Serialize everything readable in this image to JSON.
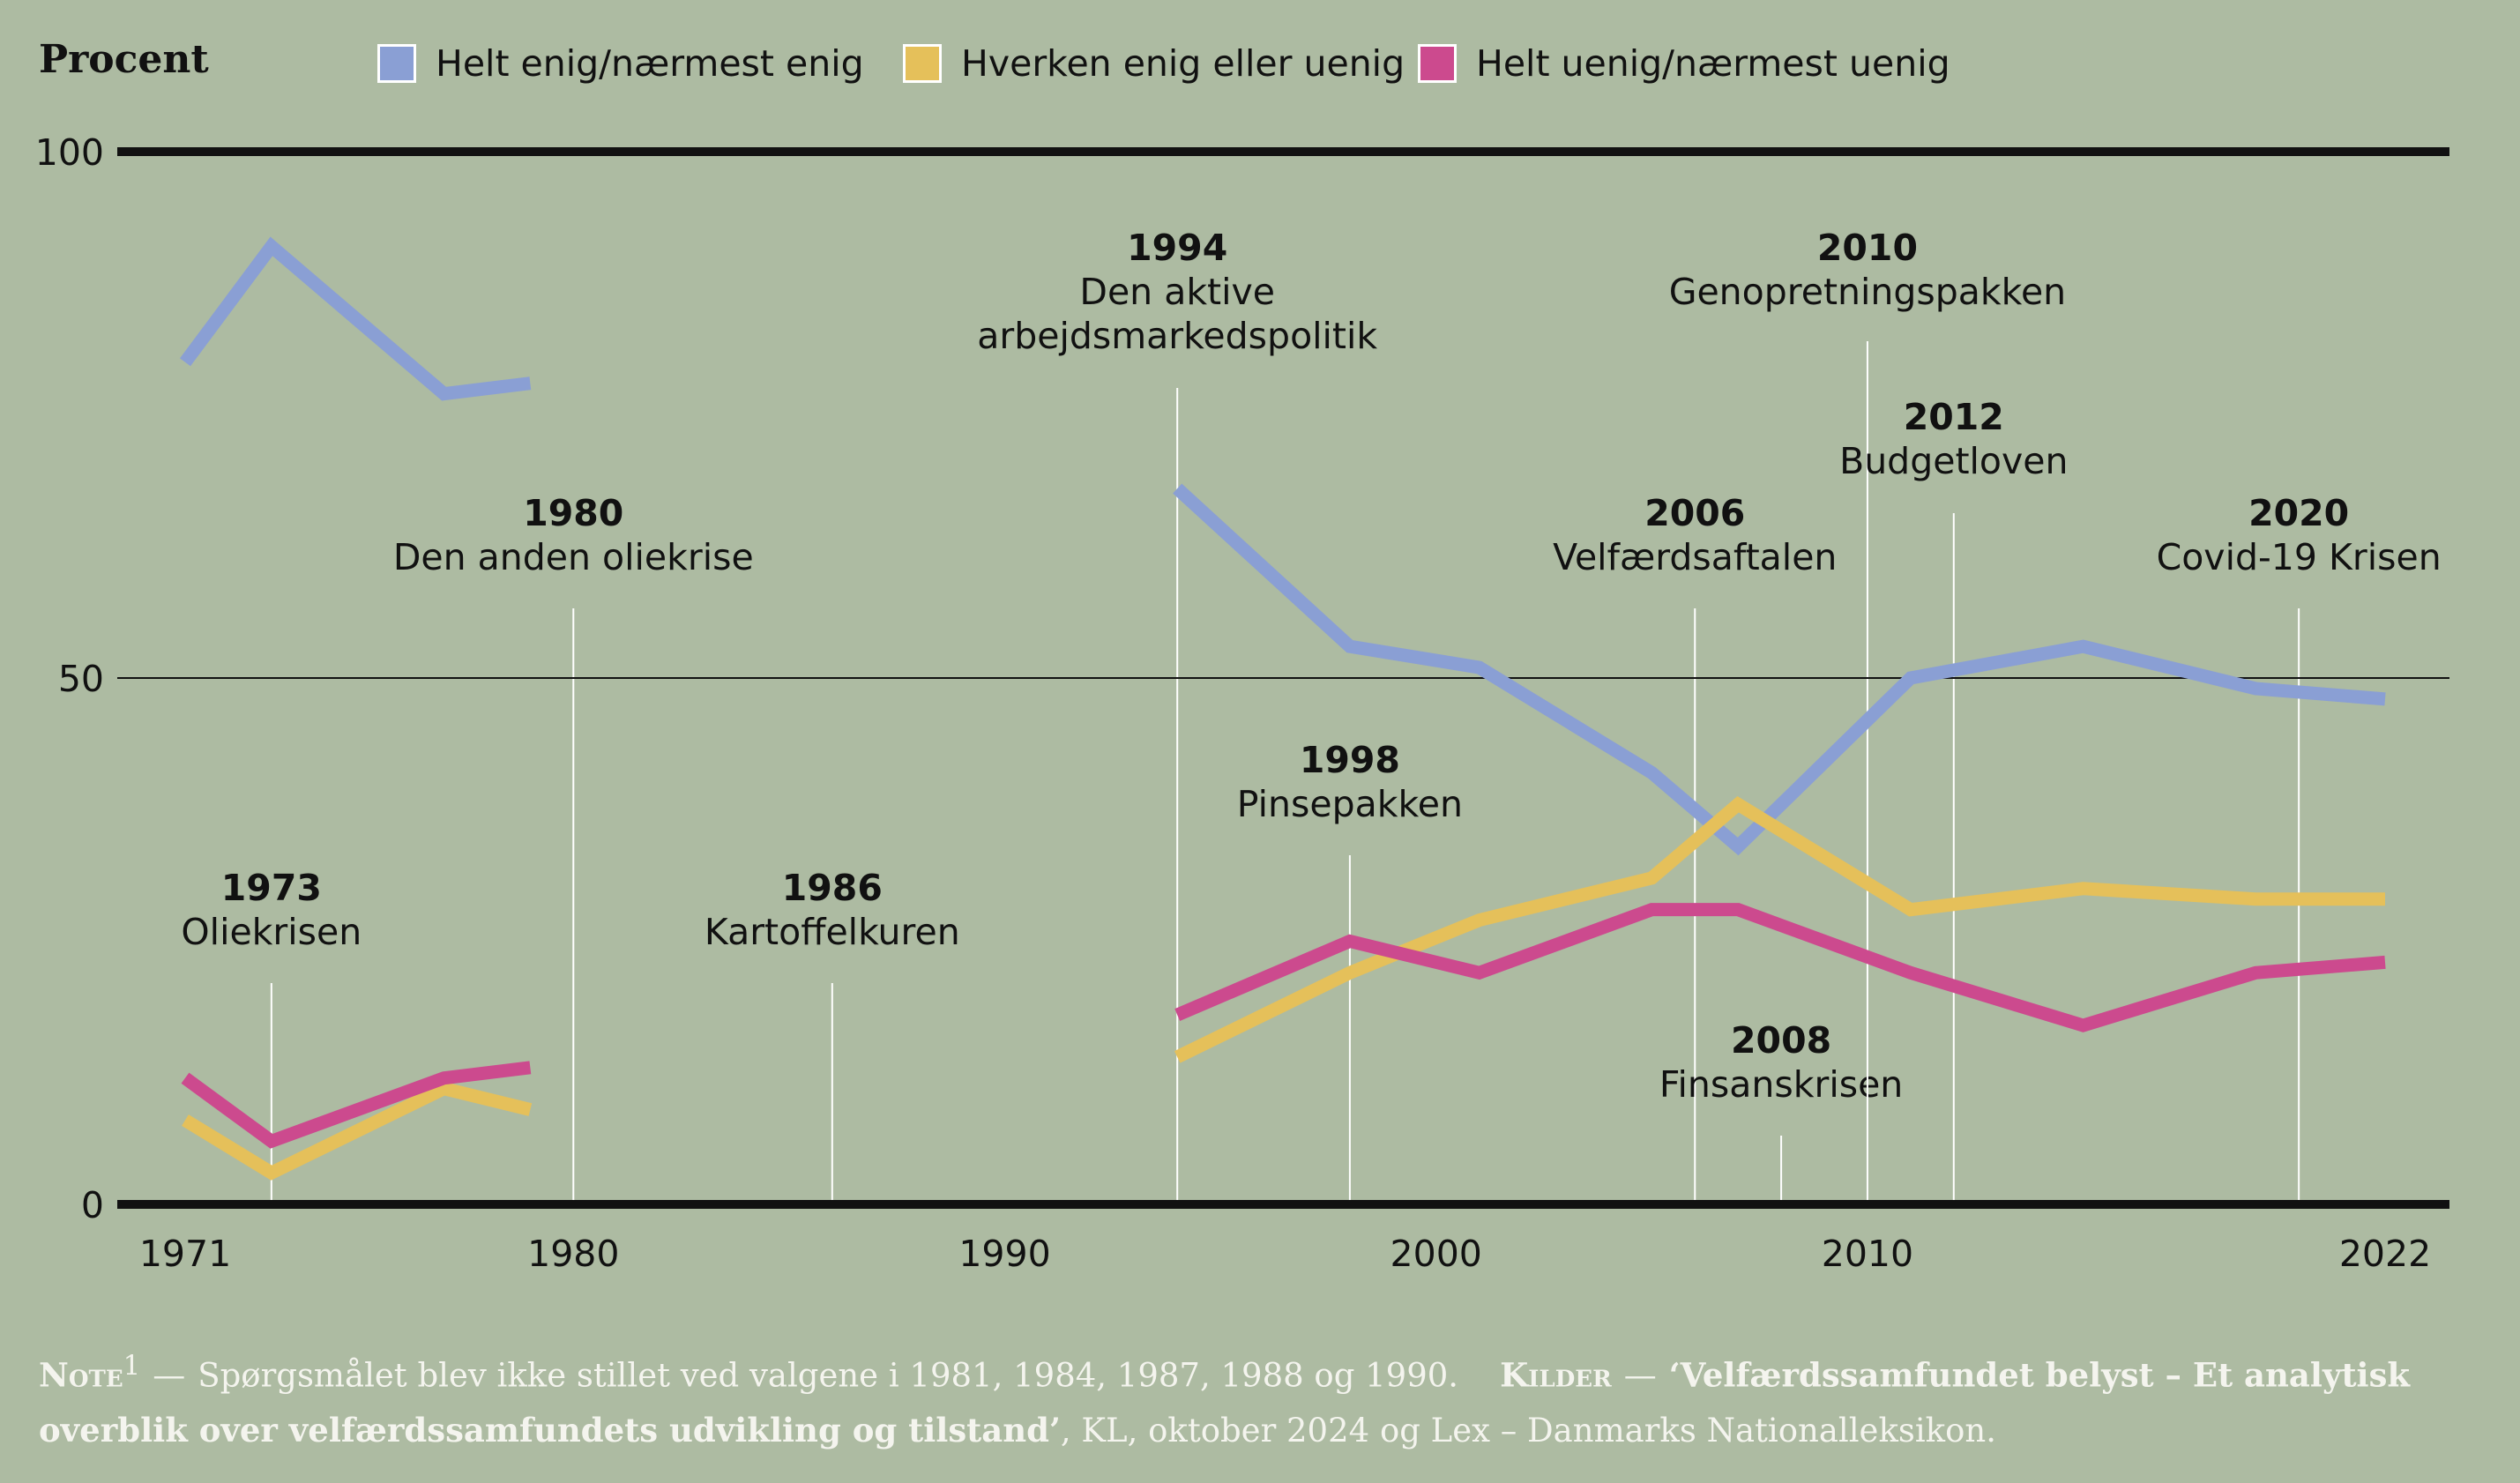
{
  "chart_data": {
    "type": "line",
    "title": "",
    "ylabel": "Procent",
    "xlabel": "",
    "ylim": [
      0,
      100
    ],
    "xlim": [
      1971,
      2022
    ],
    "yticks": [
      "0",
      "50",
      "100"
    ],
    "xticks": [
      "1971",
      "1980",
      "1990",
      "2000",
      "2010",
      "2022"
    ],
    "series": [
      {
        "name": "Helt enig/nærmest enig",
        "color": "#8a9fd4",
        "segments": [
          [
            [
              1971,
              80
            ],
            [
              1973,
              91
            ],
            [
              1977,
              77
            ],
            [
              1979,
              78
            ]
          ],
          [
            [
              1994,
              68
            ],
            [
              1998,
              53
            ],
            [
              2001,
              51
            ],
            [
              2005,
              41
            ],
            [
              2007,
              34
            ],
            [
              2011,
              50
            ],
            [
              2015,
              53
            ],
            [
              2019,
              49
            ],
            [
              2022,
              48
            ]
          ]
        ]
      },
      {
        "name": "Hverken enig eller uenig",
        "color": "#e5c05a",
        "segments": [
          [
            [
              1971,
              8
            ],
            [
              1973,
              3
            ],
            [
              1977,
              11
            ],
            [
              1979,
              9
            ]
          ],
          [
            [
              1994,
              14
            ],
            [
              1998,
              22
            ],
            [
              2001,
              27
            ],
            [
              2005,
              31
            ],
            [
              2007,
              38
            ],
            [
              2011,
              28
            ],
            [
              2015,
              30
            ],
            [
              2019,
              29
            ],
            [
              2022,
              29
            ]
          ]
        ]
      },
      {
        "name": "Helt uenig/nærmest uenig",
        "color": "#cc4a8e",
        "segments": [
          [
            [
              1971,
              12
            ],
            [
              1973,
              6
            ],
            [
              1977,
              12
            ],
            [
              1979,
              13
            ]
          ],
          [
            [
              1994,
              18
            ],
            [
              1998,
              25
            ],
            [
              2001,
              22
            ],
            [
              2005,
              28
            ],
            [
              2007,
              28
            ],
            [
              2011,
              22
            ],
            [
              2015,
              17
            ],
            [
              2019,
              22
            ],
            [
              2022,
              23
            ]
          ]
        ]
      }
    ],
    "annotations": [
      {
        "year": 1973,
        "label": "1973",
        "lines": [
          "Oliekrisen"
        ],
        "pos": "left"
      },
      {
        "year": 1980,
        "label": "1980",
        "lines": [
          "Den anden oliekrise"
        ],
        "pos": "mid-high"
      },
      {
        "year": 1986,
        "label": "1986",
        "lines": [
          "Kartoffelkuren"
        ],
        "pos": "left"
      },
      {
        "year": 1994,
        "label": "1994",
        "lines": [
          "Den aktive",
          "arbejdsmarkedspolitik"
        ],
        "pos": "top"
      },
      {
        "year": 1998,
        "label": "1998",
        "lines": [
          "Pinsepakken"
        ],
        "pos": "mid"
      },
      {
        "year": 2006,
        "label": "2006",
        "lines": [
          "Velfærdsaftalen"
        ],
        "pos": "mid-high"
      },
      {
        "year": 2008,
        "label": "2008",
        "lines": [
          "Finsanskrisen"
        ],
        "pos": "low"
      },
      {
        "year": 2010,
        "label": "2010",
        "lines": [
          "Genopretningspakken"
        ],
        "pos": "top"
      },
      {
        "year": 2012,
        "label": "2012",
        "lines": [
          "Budgetloven"
        ],
        "pos": "high"
      },
      {
        "year": 2020,
        "label": "2020",
        "lines": [
          "Covid-19 Krisen"
        ],
        "pos": "mid-high"
      }
    ]
  },
  "footer": {
    "note_label": "Note",
    "note_sup": "1",
    "dash": "—",
    "note_text": "Spørgsmålet blev ikke stillet ved valgene i 1981, 1984, 1987, 1988 og 1990.",
    "sources_label": "Kilder",
    "sources_title": "‘Velfærdssamfundet belyst – Et analytisk overblik over velfærdssamfundets udvikling og tilstand’",
    "sources_rest": ", KL, oktober  2024 og Lex – Danmarks Nationalleksikon."
  }
}
